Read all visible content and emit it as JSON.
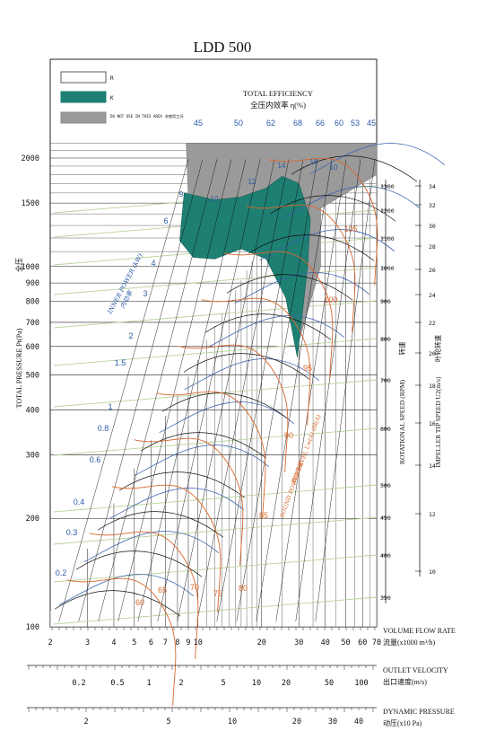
{
  "chart_data": {
    "type": "line",
    "title": "LDD 500",
    "legend": {
      "placement": "top-left",
      "items": [
        {
          "label": "R",
          "color": "#ffffff"
        },
        {
          "label": "K",
          "color": "#1e7f73"
        },
        {
          "label": "DO NOT USE IN THIS AREA 非使用工况",
          "color": "#9a9a9a"
        }
      ]
    },
    "efficiency": {
      "title_en": "TOTAL EFFICIENCY",
      "title_cn": "全压内效率 η(%)",
      "top_labels": [
        "45",
        "50",
        "62",
        "68",
        "66",
        "60",
        "53",
        "45"
      ],
      "inner_labels": [
        "9",
        "10",
        "12",
        "14",
        "16",
        "10"
      ],
      "color": "#3a63b0"
    },
    "power": {
      "label_en": "INNER POWER (kW)",
      "label_cn": "内功率",
      "labels": [
        "0.2",
        "0.3",
        "0.4",
        "0.6",
        "0.8",
        "1",
        "1.5",
        "2",
        "3",
        "4",
        "6"
      ],
      "color": "#3a63b0"
    },
    "noise": {
      "label_en": "SOUND POWER LEVEL Lw(A) dB(A)",
      "label_cn": "声功率级",
      "labels": [
        "60",
        "65",
        "70",
        "75",
        "80",
        "85",
        "90",
        "95",
        "100",
        "105"
      ],
      "color": "#d8672c"
    },
    "y_axis": {
      "label_en": "TOTAL PRESSURE Pt(Pa)",
      "label_cn": "全压",
      "scale": "log",
      "range": [
        100,
        2000
      ],
      "ticks": [
        "100",
        "200",
        "300",
        "400",
        "500",
        "600",
        "700",
        "800",
        "900",
        "1000",
        "1500",
        "2000"
      ]
    },
    "x_axis": {
      "label_en": "VOLUME FLOW RATE",
      "label_cn": "流量(x1000 m³/h)",
      "scale": "log",
      "range": [
        2,
        70
      ],
      "ticks": [
        "2",
        "3",
        "4",
        "5",
        "6",
        "7",
        "8",
        "9",
        "10",
        "20",
        "30",
        "40",
        "50",
        "60",
        "70"
      ]
    },
    "outlet_velocity_axis": {
      "label_en": "OUTLET VELOCITY",
      "label_cn": "出口速度(m/s)",
      "ticks": [
        "0.2",
        "0.5",
        "1",
        "2",
        "5",
        "10",
        "20",
        "50",
        "100"
      ]
    },
    "dynamic_pressure_axis": {
      "label_en": "DYNAMIC PRESSURE",
      "label_cn": "动压(x10 Pa)",
      "ticks": [
        "2",
        "5",
        "10",
        "20",
        "30",
        "40"
      ]
    },
    "rotational_speed_axis": {
      "label_en": "ROTATIONAL SPEED (RPM)",
      "label_cn": "转速",
      "ticks": [
        "350",
        "400",
        "450",
        "500",
        "600",
        "700",
        "800",
        "900",
        "1000",
        "1100",
        "1200",
        "1300"
      ]
    },
    "tip_speed_axis": {
      "label_en": "IMPELLER TIP SPEED U2(m/s)",
      "label_cn": "叶轮转速",
      "ticks": [
        "10",
        "12",
        "14",
        "16",
        "18",
        "20",
        "22",
        "24",
        "26",
        "28",
        "30",
        "32",
        "34"
      ]
    },
    "colors": {
      "operating_area": "#1e7f73",
      "do_not_use": "#9a9a9a",
      "speed_lines": "#b9d49b",
      "efficiency": "#3a63b0",
      "noise": "#d8672c",
      "grid": "#222222"
    }
  }
}
